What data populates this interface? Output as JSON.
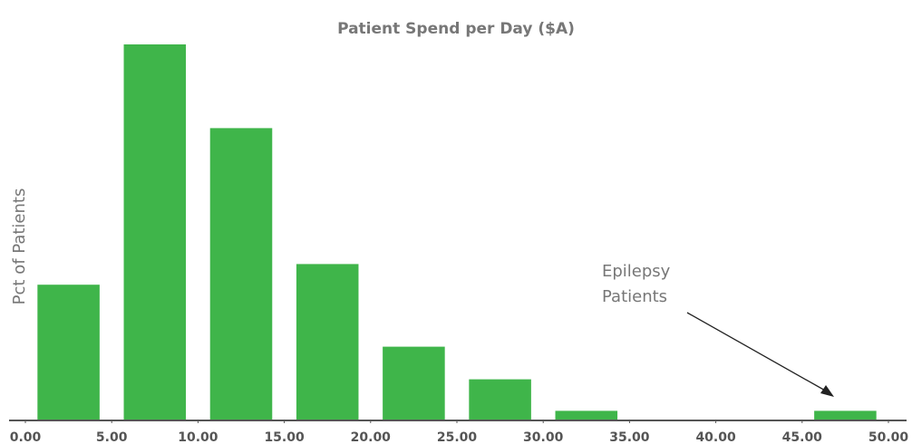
{
  "chart_data": {
    "type": "histogram",
    "title": "Patient Spend per Day ($A)",
    "y_label": "Pct of Patients",
    "bins": [
      0,
      5,
      10,
      15,
      20,
      25,
      30,
      35,
      40,
      45,
      50
    ],
    "values": [
      12.4,
      34.5,
      26.8,
      14.3,
      6.7,
      3.7,
      0.8,
      0,
      0,
      0.8
    ],
    "color": "#3fb54a",
    "xlim": [
      0,
      50
    ],
    "xticks": [
      {
        "value": 0,
        "label": "0.00"
      },
      {
        "value": 5,
        "label": "5.00"
      },
      {
        "value": 10,
        "label": "10.00"
      },
      {
        "value": 15,
        "label": "15.00"
      },
      {
        "value": 20,
        "label": "20.00"
      },
      {
        "value": 25,
        "label": "25.00"
      },
      {
        "value": 30,
        "label": "30.00"
      },
      {
        "value": 35,
        "label": "35.00"
      },
      {
        "value": 40,
        "label": "40.00"
      },
      {
        "value": 45,
        "label": "45.00"
      },
      {
        "value": 50,
        "label": "50.00"
      }
    ],
    "annotation": "Epilepsy Patients"
  }
}
